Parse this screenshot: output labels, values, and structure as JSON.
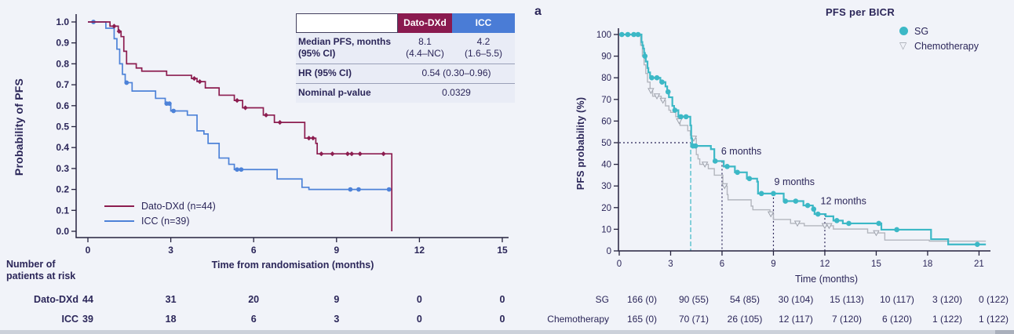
{
  "page": {
    "background": "#f1f3f9",
    "text_color": "#2b2659"
  },
  "left_panel": {
    "summary_table": {
      "header": [
        "Dato-DXd",
        "ICC"
      ],
      "header_colors": [
        "#8a1a4f",
        "#4a7cd6"
      ],
      "row1_label": "Median PFS, months\n(95% CI)",
      "row1_dato": "8.1\n(4.4–NC)",
      "row1_icc": "4.2\n(1.6–5.5)",
      "row2_label": "HR (95% CI)",
      "row2_value": "0.54 (0.30–0.96)",
      "row3_label": "Nominal p-value",
      "row3_value": "0.0329"
    },
    "risk_header": "Number of\npatients at risk"
  },
  "right_panel": {
    "panel_label": "a"
  },
  "chart_data": [
    {
      "type": "line",
      "subtype": "kaplan-meier-step",
      "title": "",
      "xlabel": "Time from randomisation (months)",
      "ylabel": "Probability of PFS",
      "x_ticks": [
        "0",
        "3",
        "6",
        "9",
        "12",
        "15"
      ],
      "y_ticks": [
        "1.0",
        "0.9",
        "0.8",
        "0.7",
        "0.6",
        "0.5",
        "0.4",
        "0.3",
        "0.2",
        "0.1",
        "0.0"
      ],
      "xlim": [
        0,
        15.2
      ],
      "ylim": [
        0,
        1.0
      ],
      "y_max": 1.0,
      "legend_position": "lower-left",
      "grid": false,
      "series": [
        {
          "name": "Dato-DXd (n=44)",
          "color": "#8c1d50",
          "marker": "diamond",
          "points": [
            [
              0,
              1.0
            ],
            [
              0.8,
              0.98
            ],
            [
              1.1,
              0.955
            ],
            [
              1.2,
              0.93
            ],
            [
              1.3,
              0.86
            ],
            [
              1.4,
              0.8
            ],
            [
              1.75,
              0.78
            ],
            [
              1.95,
              0.765
            ],
            [
              2.85,
              0.745
            ],
            [
              3.75,
              0.73
            ],
            [
              3.95,
              0.715
            ],
            [
              4.25,
              0.685
            ],
            [
              4.75,
              0.65
            ],
            [
              5.3,
              0.625
            ],
            [
              5.6,
              0.59
            ],
            [
              6.35,
              0.555
            ],
            [
              6.75,
              0.52
            ],
            [
              7.85,
              0.445
            ],
            [
              8.25,
              0.42
            ],
            [
              8.3,
              0.37
            ],
            [
              11.0,
              0.37
            ],
            [
              11.0,
              0
            ]
          ],
          "censor_marks": [
            [
              0.95,
              0.98
            ],
            [
              1.13,
              0.955
            ],
            [
              3.85,
              0.73
            ],
            [
              4.05,
              0.715
            ],
            [
              5.4,
              0.625
            ],
            [
              5.7,
              0.59
            ],
            [
              6.45,
              0.555
            ],
            [
              6.95,
              0.52
            ],
            [
              8.0,
              0.445
            ],
            [
              8.15,
              0.445
            ],
            [
              8.45,
              0.37
            ],
            [
              8.85,
              0.37
            ],
            [
              9.4,
              0.37
            ],
            [
              9.55,
              0.37
            ],
            [
              9.85,
              0.37
            ],
            [
              10.7,
              0.37
            ]
          ]
        },
        {
          "name": "ICC (n=39)",
          "color": "#4d82d8",
          "marker": "circle",
          "points": [
            [
              0,
              1.0
            ],
            [
              0.65,
              0.97
            ],
            [
              0.95,
              0.92
            ],
            [
              1.05,
              0.87
            ],
            [
              1.15,
              0.8
            ],
            [
              1.25,
              0.75
            ],
            [
              1.35,
              0.71
            ],
            [
              1.6,
              0.67
            ],
            [
              2.45,
              0.635
            ],
            [
              2.8,
              0.61
            ],
            [
              3.0,
              0.575
            ],
            [
              3.6,
              0.555
            ],
            [
              3.95,
              0.48
            ],
            [
              4.2,
              0.465
            ],
            [
              4.35,
              0.42
            ],
            [
              4.75,
              0.35
            ],
            [
              5.1,
              0.32
            ],
            [
              5.3,
              0.295
            ],
            [
              6.85,
              0.25
            ],
            [
              7.75,
              0.21
            ],
            [
              8.0,
              0.2
            ],
            [
              11.0,
              0.2
            ]
          ],
          "censor_marks": [
            [
              0.2,
              1.0
            ],
            [
              1.4,
              0.71
            ],
            [
              2.85,
              0.61
            ],
            [
              2.95,
              0.61
            ],
            [
              3.1,
              0.575
            ],
            [
              5.4,
              0.295
            ],
            [
              5.55,
              0.295
            ],
            [
              9.5,
              0.2
            ],
            [
              9.8,
              0.2
            ],
            [
              10.9,
              0.2
            ]
          ]
        }
      ],
      "summary": {
        "median_pfs_months": {
          "dato_dxd": "8.1 (4.4–NC)",
          "icc": "4.2 (1.6–5.5)"
        },
        "hr_95ci": "0.54 (0.30–0.96)",
        "nominal_p_value": "0.0329"
      },
      "number_at_risk": {
        "times": [
          0,
          3,
          6,
          9,
          12,
          15
        ],
        "rows": [
          {
            "label": "Dato-DXd",
            "values": [
              "44",
              "31",
              "20",
              "9",
              "0",
              "0"
            ]
          },
          {
            "label": "ICC",
            "values": [
              "39",
              "18",
              "6",
              "3",
              "0",
              "0"
            ]
          }
        ]
      }
    },
    {
      "type": "line",
      "subtype": "kaplan-meier-step",
      "title": "PFS per BICR",
      "xlabel": "Time (months)",
      "ylabel": "PFS probability (%)",
      "x_ticks": [
        "0",
        "3",
        "6",
        "9",
        "12",
        "15",
        "18",
        "21"
      ],
      "y_ticks": [
        "100",
        "90",
        "80",
        "70",
        "60",
        "50",
        "40",
        "30",
        "20",
        "10",
        "0"
      ],
      "xlim": [
        0,
        21.7
      ],
      "ylim": [
        0,
        100
      ],
      "y_max": 100,
      "legend_position": "upper-right",
      "grid": false,
      "series": [
        {
          "name": "SG",
          "color": "#3cb8c6",
          "marker": "circle",
          "points": [
            [
              0,
              100
            ],
            [
              1.3,
              96.5
            ],
            [
              1.35,
              95
            ],
            [
              1.4,
              93.5
            ],
            [
              1.45,
              91.5
            ],
            [
              1.5,
              90
            ],
            [
              1.55,
              87.5
            ],
            [
              1.65,
              84.5
            ],
            [
              1.7,
              82.5
            ],
            [
              1.8,
              80
            ],
            [
              2.4,
              78
            ],
            [
              2.7,
              76
            ],
            [
              2.8,
              73.5
            ],
            [
              2.9,
              71
            ],
            [
              3.1,
              67
            ],
            [
              3.2,
              65
            ],
            [
              3.45,
              62
            ],
            [
              4.15,
              58
            ],
            [
              4.2,
              52
            ],
            [
              4.25,
              48.5
            ],
            [
              5.35,
              47
            ],
            [
              5.55,
              41.5
            ],
            [
              6.1,
              39
            ],
            [
              6.75,
              36.3
            ],
            [
              7.45,
              33.4
            ],
            [
              8.05,
              32
            ],
            [
              8.1,
              26.5
            ],
            [
              9.6,
              23
            ],
            [
              10.75,
              21
            ],
            [
              11.3,
              19.3
            ],
            [
              11.4,
              17
            ],
            [
              12.05,
              16
            ],
            [
              12.5,
              14
            ],
            [
              13.05,
              12.7
            ],
            [
              15.3,
              9.8
            ],
            [
              18.2,
              5.4
            ],
            [
              19.2,
              3
            ],
            [
              21.4,
              3
            ]
          ],
          "censor_marks": [
            [
              0.15,
              100
            ],
            [
              0.5,
              100
            ],
            [
              0.85,
              100
            ],
            [
              1.1,
              100
            ],
            [
              1.5,
              90
            ],
            [
              1.9,
              80
            ],
            [
              2.2,
              80
            ],
            [
              2.5,
              78
            ],
            [
              2.85,
              73.5
            ],
            [
              3.25,
              65
            ],
            [
              3.6,
              62
            ],
            [
              3.9,
              62
            ],
            [
              4.3,
              48.5
            ],
            [
              4.45,
              48.5
            ],
            [
              5.6,
              41.5
            ],
            [
              6.3,
              39
            ],
            [
              6.9,
              36.3
            ],
            [
              7.6,
              33.4
            ],
            [
              8.3,
              26.5
            ],
            [
              9.0,
              26.5
            ],
            [
              9.7,
              23
            ],
            [
              10.3,
              23
            ],
            [
              11.0,
              21
            ],
            [
              11.35,
              19.3
            ],
            [
              11.6,
              17
            ],
            [
              12.7,
              14
            ],
            [
              13.4,
              12.7
            ],
            [
              15.15,
              12.7
            ],
            [
              16.2,
              9.8
            ],
            [
              20.9,
              3
            ]
          ]
        },
        {
          "name": "Chemotherapy",
          "color": "#b3b6be",
          "marker": "triangle-down",
          "points": [
            [
              0,
              100
            ],
            [
              1.25,
              95
            ],
            [
              1.35,
              90
            ],
            [
              1.45,
              86
            ],
            [
              1.55,
              82
            ],
            [
              1.65,
              78
            ],
            [
              1.8,
              74
            ],
            [
              1.95,
              71.5
            ],
            [
              2.45,
              69.5
            ],
            [
              2.7,
              67
            ],
            [
              2.9,
              65
            ],
            [
              3.0,
              64
            ],
            [
              3.3,
              62
            ],
            [
              3.45,
              60
            ],
            [
              3.55,
              58
            ],
            [
              4.0,
              55.5
            ],
            [
              4.15,
              53.5
            ],
            [
              4.2,
              52
            ],
            [
              4.5,
              44.5
            ],
            [
              4.6,
              42.5
            ],
            [
              4.7,
              40
            ],
            [
              5.2,
              38
            ],
            [
              5.55,
              35
            ],
            [
              6.05,
              30
            ],
            [
              6.3,
              26
            ],
            [
              6.35,
              23.6
            ],
            [
              7.7,
              20.7
            ],
            [
              7.8,
              19
            ],
            [
              8.8,
              17
            ],
            [
              9.0,
              14.5
            ],
            [
              10.0,
              12.7
            ],
            [
              10.8,
              11.6
            ],
            [
              12.5,
              10.1
            ],
            [
              14.5,
              8.3
            ],
            [
              15.5,
              5
            ],
            [
              18.1,
              4.5
            ],
            [
              21.4,
              4.5
            ]
          ],
          "censor_marks": [
            [
              1.85,
              74
            ],
            [
              2.2,
              71.5
            ],
            [
              2.55,
              69.5
            ],
            [
              3.5,
              60
            ],
            [
              4.35,
              52
            ],
            [
              5.0,
              40
            ],
            [
              6.15,
              30
            ],
            [
              8.85,
              17
            ],
            [
              10.4,
              12.7
            ],
            [
              12.0,
              11.6
            ],
            [
              12.25,
              11.6
            ],
            [
              15.0,
              8.3
            ]
          ]
        }
      ],
      "reference_lines": [
        {
          "orientation": "h",
          "value": 50,
          "from_month": 0,
          "to_month": 4.17,
          "dash": "dotted",
          "color": "#2b2659"
        },
        {
          "orientation": "v",
          "month": 4.17,
          "from_value": 50,
          "to_value": 0,
          "dash": "dashed",
          "color": "#3cb8c6"
        },
        {
          "orientation": "v",
          "month": 6,
          "from_value": 41.5,
          "to_value": 0,
          "dash": "dotted",
          "color": "#2b2659"
        },
        {
          "orientation": "v",
          "month": 9,
          "from_value": 26.5,
          "to_value": 0,
          "dash": "dotted",
          "color": "#2b2659"
        },
        {
          "orientation": "v",
          "month": 12,
          "from_value": 17,
          "to_value": 0,
          "dash": "dotted",
          "color": "#2b2659"
        }
      ],
      "annotations": [
        {
          "text": "6 months",
          "month": 5.95,
          "value": 44.5
        },
        {
          "text": "9 months",
          "month": 9.05,
          "value": 30.5
        },
        {
          "text": "12 months",
          "month": 11.75,
          "value": 21.5
        }
      ],
      "number_at_risk": {
        "times": [
          0,
          3,
          6,
          9,
          12,
          15,
          18,
          21
        ],
        "rows": [
          {
            "label": "SG",
            "values": [
              "166 (0)",
              "90 (55)",
              "54 (85)",
              "30 (104)",
              "15 (113)",
              "10 (117)",
              "3 (120)",
              "0 (122)"
            ]
          },
          {
            "label": "Chemotherapy",
            "values": [
              "165 (0)",
              "70 (71)",
              "26 (105)",
              "12 (117)",
              "7 (120)",
              "6 (120)",
              "1 (122)",
              "1 (122)"
            ]
          }
        ]
      }
    }
  ]
}
